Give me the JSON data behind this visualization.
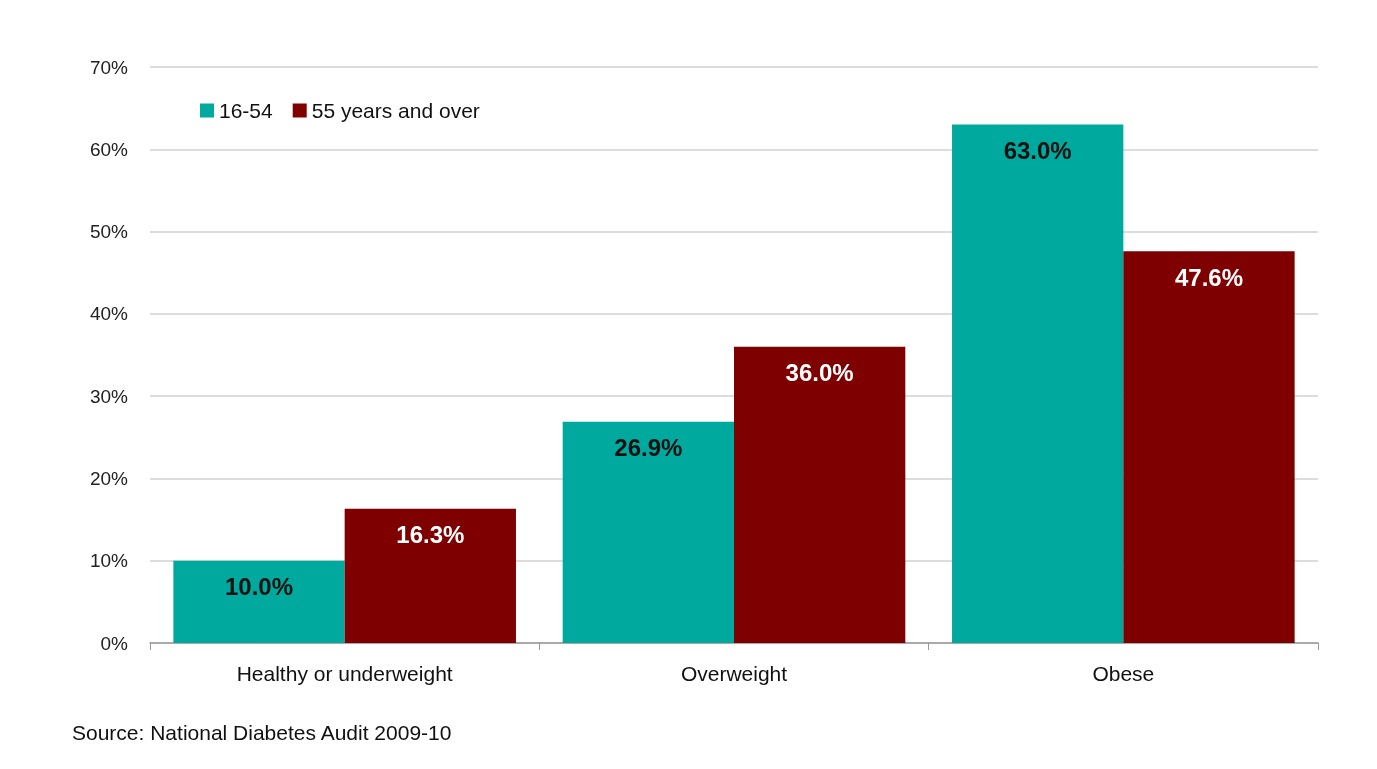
{
  "chart_data": {
    "type": "bar",
    "categories": [
      "Healthy or underweight",
      "Overweight",
      "Obese"
    ],
    "series": [
      {
        "name": "16-54",
        "color": "#00a99d",
        "values": [
          10.0,
          26.9,
          63.0
        ],
        "value_labels": [
          "10.0%",
          "26.9%",
          "63.0%"
        ]
      },
      {
        "name": "55 years and over",
        "color": "#7f0000",
        "values": [
          16.3,
          36.0,
          47.6
        ],
        "value_labels": [
          "16.3%",
          "36.0%",
          "47.6%"
        ]
      }
    ],
    "ylim": [
      0,
      70
    ],
    "yticks": [
      {
        "value": 0,
        "label": "0%"
      },
      {
        "value": 10,
        "label": "10%"
      },
      {
        "value": 20,
        "label": "20%"
      },
      {
        "value": 30,
        "label": "30%"
      },
      {
        "value": 40,
        "label": "40%"
      },
      {
        "value": 50,
        "label": "50%"
      },
      {
        "value": 60,
        "label": "60%"
      },
      {
        "value": 70,
        "label": "70%"
      }
    ],
    "grid": "y",
    "legend": "top left",
    "annotations": [
      "Source: National Diabetes Audit 2009-10"
    ]
  }
}
